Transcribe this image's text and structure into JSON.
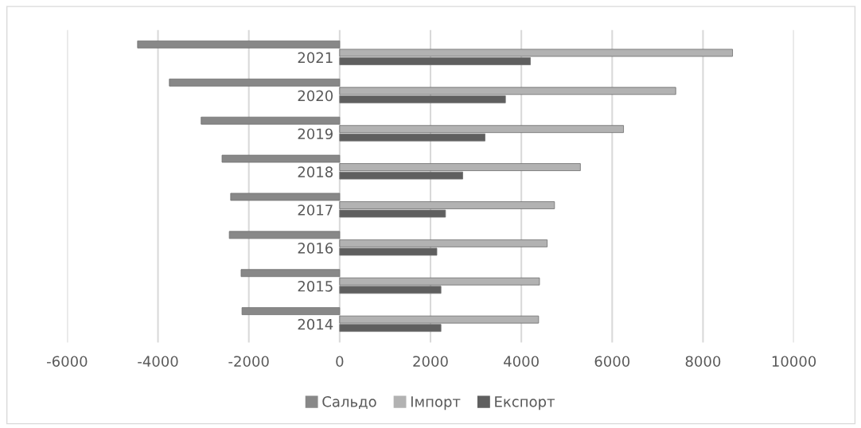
{
  "chart_data": {
    "type": "bar",
    "orientation": "horizontal",
    "categories": [
      "2021",
      "2020",
      "2019",
      "2018",
      "2017",
      "2016",
      "2015",
      "2014"
    ],
    "series": [
      {
        "name": "Сальдо",
        "color": "#888888",
        "values": [
          -4450,
          -3750,
          -3050,
          -2590,
          -2400,
          -2430,
          -2170,
          -2150
        ]
      },
      {
        "name": "Імпорт",
        "color": "#b2b2b2",
        "values": [
          8650,
          7400,
          6250,
          5300,
          4730,
          4570,
          4400,
          4380
        ]
      },
      {
        "name": "Експорт",
        "color": "#5f5f5f",
        "values": [
          4200,
          3650,
          3200,
          2710,
          2330,
          2140,
          2230,
          2230
        ]
      }
    ],
    "xlim": [
      -6000,
      10000
    ],
    "xticks": [
      -6000,
      -4000,
      -2000,
      0,
      2000,
      4000,
      6000,
      8000,
      10000
    ],
    "grid": "x",
    "legend": "bottom"
  }
}
